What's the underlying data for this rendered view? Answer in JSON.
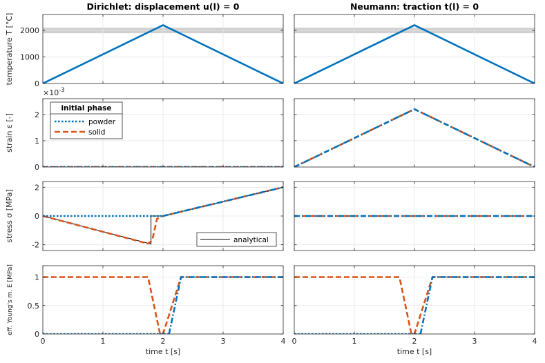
{
  "figure": {
    "titles": [
      "Dirichlet: displacement u(l) = 0",
      "Neumann: traction t(l) = 0"
    ],
    "xlabel": "time t [s]",
    "xticks": [
      "0",
      "1",
      "2",
      "3",
      "4"
    ],
    "colors": {
      "powder": "#0072BD",
      "solid": "#D95319",
      "analytical": "#000000",
      "reference": "#d0d0d0"
    }
  },
  "legend_phase": {
    "title": "initial phase",
    "entries": [
      "powder",
      "solid"
    ]
  },
  "legend_analytical": {
    "entry": "analytical"
  },
  "chart_data": [
    {
      "id": "temp-dirichlet",
      "type": "line",
      "row": 0,
      "col": 0,
      "title": "Dirichlet: displacement u(l) = 0",
      "ylabel": "temperature T [°C]",
      "xlabel": "",
      "xlim": [
        0,
        4
      ],
      "ylim": [
        0,
        2600
      ],
      "yticks": [
        0,
        1000,
        2000
      ],
      "yticklabels": [
        "0",
        "1000",
        "2000"
      ],
      "exponent_label": "",
      "grid": true,
      "reference_band": {
        "y": 2000,
        "label": ""
      },
      "series": [
        {
          "role": "powder",
          "style": "solid-thick",
          "x": [
            0,
            2,
            4
          ],
          "y": [
            0,
            2200,
            0
          ]
        }
      ]
    },
    {
      "id": "temp-neumann",
      "type": "line",
      "row": 0,
      "col": 1,
      "title": "Neumann: traction t(l) = 0",
      "ylabel": "",
      "xlabel": "",
      "xlim": [
        0,
        4
      ],
      "ylim": [
        0,
        2600
      ],
      "yticks": [
        0,
        1000,
        2000
      ],
      "yticklabels": [],
      "exponent_label": "",
      "grid": true,
      "reference_band": {
        "y": 2000,
        "label": ""
      },
      "series": [
        {
          "role": "powder",
          "style": "solid-thick",
          "x": [
            0,
            2,
            4
          ],
          "y": [
            0,
            2200,
            0
          ]
        }
      ]
    },
    {
      "id": "strain-dirichlet",
      "type": "line",
      "row": 1,
      "col": 0,
      "title": "",
      "ylabel": "strain  ε [-]",
      "xlabel": "",
      "xlim": [
        0,
        4
      ],
      "ylim": [
        0,
        2.6
      ],
      "yticks": [
        0,
        1,
        2
      ],
      "yticklabels": [
        "0",
        "1",
        "2"
      ],
      "exponent_label": "×10^-3",
      "grid": true,
      "series": [
        {
          "role": "solid",
          "style": "dashed",
          "x": [
            0,
            4
          ],
          "y": [
            0,
            0
          ]
        },
        {
          "role": "powder",
          "style": "dotted",
          "x": [
            0,
            4
          ],
          "y": [
            0,
            0
          ]
        }
      ]
    },
    {
      "id": "strain-neumann",
      "type": "line",
      "row": 1,
      "col": 1,
      "title": "",
      "ylabel": "",
      "xlabel": "",
      "xlim": [
        0,
        4
      ],
      "ylim": [
        0,
        2.6
      ],
      "yticks": [
        0,
        1,
        2
      ],
      "yticklabels": [],
      "exponent_label": "",
      "grid": true,
      "series": [
        {
          "role": "solid",
          "style": "dashed",
          "x": [
            0,
            2,
            4
          ],
          "y": [
            0,
            2.2,
            0
          ]
        },
        {
          "role": "powder",
          "style": "dashdot",
          "x": [
            0,
            2,
            4
          ],
          "y": [
            0,
            2.2,
            0
          ]
        }
      ]
    },
    {
      "id": "stress-dirichlet",
      "type": "line",
      "row": 2,
      "col": 0,
      "title": "",
      "ylabel": "stress  σ [MPa]",
      "xlabel": "",
      "xlim": [
        0,
        4
      ],
      "ylim": [
        -2.4,
        2.4
      ],
      "yticks": [
        -2,
        0,
        2
      ],
      "yticklabels": [
        "-2",
        "0",
        "2"
      ],
      "exponent_label": "",
      "grid": true,
      "series": [
        {
          "role": "analytical",
          "style": "thin",
          "x": [
            0,
            1.8,
            1.8,
            2.0,
            4
          ],
          "y": [
            0,
            -1.95,
            0,
            0,
            2.0
          ]
        },
        {
          "role": "solid",
          "style": "dashed",
          "x": [
            0,
            1.75,
            1.82,
            1.9,
            2.0,
            4
          ],
          "y": [
            0,
            -1.92,
            -1.7,
            -0.2,
            0,
            2.0
          ]
        },
        {
          "role": "powder",
          "style": "dotted",
          "x": [
            0,
            2.0
          ],
          "y": [
            0,
            0
          ]
        },
        {
          "role": "powder",
          "style": "dashdot",
          "x": [
            2.0,
            4
          ],
          "y": [
            0,
            2.0
          ]
        }
      ]
    },
    {
      "id": "stress-neumann",
      "type": "line",
      "row": 2,
      "col": 1,
      "title": "",
      "ylabel": "",
      "xlabel": "",
      "xlim": [
        0,
        4
      ],
      "ylim": [
        -2.4,
        2.4
      ],
      "yticks": [
        -2,
        0,
        2
      ],
      "yticklabels": [],
      "exponent_label": "",
      "grid": true,
      "series": [
        {
          "role": "solid",
          "style": "dashed",
          "x": [
            0,
            4
          ],
          "y": [
            0,
            0
          ]
        },
        {
          "role": "powder",
          "style": "dashdot",
          "x": [
            0,
            4
          ],
          "y": [
            0,
            0
          ]
        }
      ]
    },
    {
      "id": "young-dirichlet",
      "type": "line",
      "row": 3,
      "col": 0,
      "title": "",
      "ylabel": "eff. Young's m. E [MPa]",
      "xlabel": "time t [s]",
      "xlim": [
        0,
        4
      ],
      "ylim": [
        0,
        1.2
      ],
      "yticks": [
        0,
        0.5,
        1
      ],
      "yticklabels": [
        "0",
        "0.5",
        "1"
      ],
      "exponent_label": "",
      "grid": true,
      "series": [
        {
          "role": "solid",
          "style": "dashed",
          "x": [
            0,
            1.75,
            1.95,
            2.0,
            2.3,
            4
          ],
          "y": [
            1,
            1,
            0,
            0,
            1,
            1
          ]
        },
        {
          "role": "powder",
          "style": "dotted",
          "x": [
            0,
            2.1
          ],
          "y": [
            0,
            0
          ]
        },
        {
          "role": "powder",
          "style": "dashdot",
          "x": [
            2.1,
            2.3,
            4
          ],
          "y": [
            0,
            1,
            1
          ]
        }
      ]
    },
    {
      "id": "young-neumann",
      "type": "line",
      "row": 3,
      "col": 1,
      "title": "",
      "ylabel": "",
      "xlabel": "time t [s]",
      "xlim": [
        0,
        4
      ],
      "ylim": [
        0,
        1.2
      ],
      "yticks": [
        0,
        0.5,
        1
      ],
      "yticklabels": [],
      "exponent_label": "",
      "grid": true,
      "series": [
        {
          "role": "solid",
          "style": "dashed",
          "x": [
            0,
            1.75,
            1.95,
            2.0,
            2.3,
            4
          ],
          "y": [
            1,
            1,
            0,
            0,
            1,
            1
          ]
        },
        {
          "role": "powder",
          "style": "dotted",
          "x": [
            0,
            2.1
          ],
          "y": [
            0,
            0
          ]
        },
        {
          "role": "powder",
          "style": "dashdot",
          "x": [
            2.1,
            2.3,
            4
          ],
          "y": [
            0,
            1,
            1
          ]
        }
      ]
    }
  ]
}
